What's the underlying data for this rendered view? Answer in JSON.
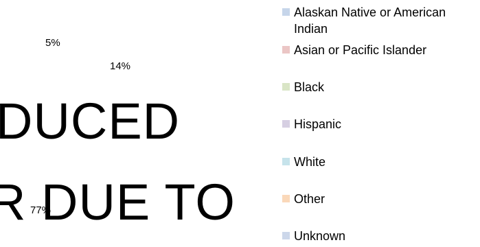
{
  "watermark": [
    "DUCED",
    "R DUE TO"
  ],
  "data_labels": [
    "5%",
    "14%",
    "77%"
  ],
  "legend": {
    "items": [
      "Alaskan Native or American Indian",
      "Asian or Pacific Islander",
      "Black",
      "Hispanic",
      "White",
      "Other",
      "Unknown"
    ]
  }
}
